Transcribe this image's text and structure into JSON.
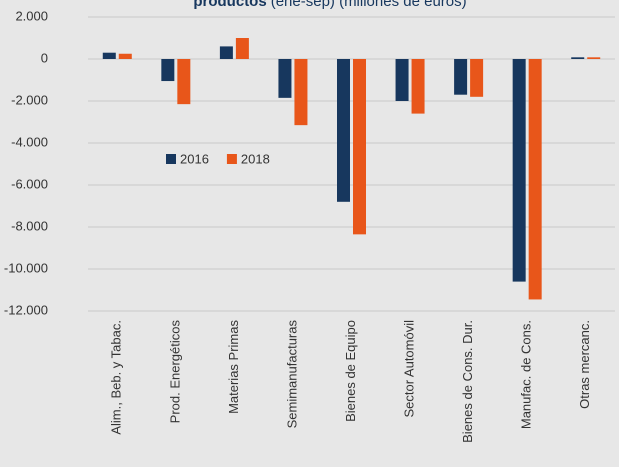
{
  "chart_data": {
    "type": "bar",
    "title": "productos",
    "subtitle": "(ene-sep) (millones de euros)",
    "categories": [
      "Alim., Beb. y Tabac.",
      "Prod. Energéticos",
      "Materias Primas",
      "Semimanufacturas",
      "Bienes de Equipo",
      "Sector Automóvil",
      "Bienes de Cons. Dur.",
      "Manufac. de Cons.",
      "Otras mercanc."
    ],
    "series": [
      {
        "name": "2016",
        "color": "#17375e",
        "values": [
          300,
          -1050,
          600,
          -1850,
          -6800,
          -2000,
          -1700,
          -10600,
          80
        ]
      },
      {
        "name": "2018",
        "color": "#e8561a",
        "values": [
          250,
          -2150,
          1000,
          -3150,
          -8350,
          -2600,
          -1800,
          -11450,
          80
        ]
      }
    ],
    "ylim": [
      -12000,
      2000
    ],
    "yticks": [
      {
        "value": 2000,
        "label": "2.000"
      },
      0,
      {
        "value": -2000,
        "label": "-2.000"
      },
      {
        "value": -4000,
        "label": "-4.000"
      },
      {
        "value": -6000,
        "label": "-6.000"
      },
      {
        "value": -8000,
        "label": "-8.000"
      },
      {
        "value": -10000,
        "label": "-10.000"
      },
      {
        "value": -12000,
        "label": "-12.000"
      }
    ],
    "grid": true
  }
}
